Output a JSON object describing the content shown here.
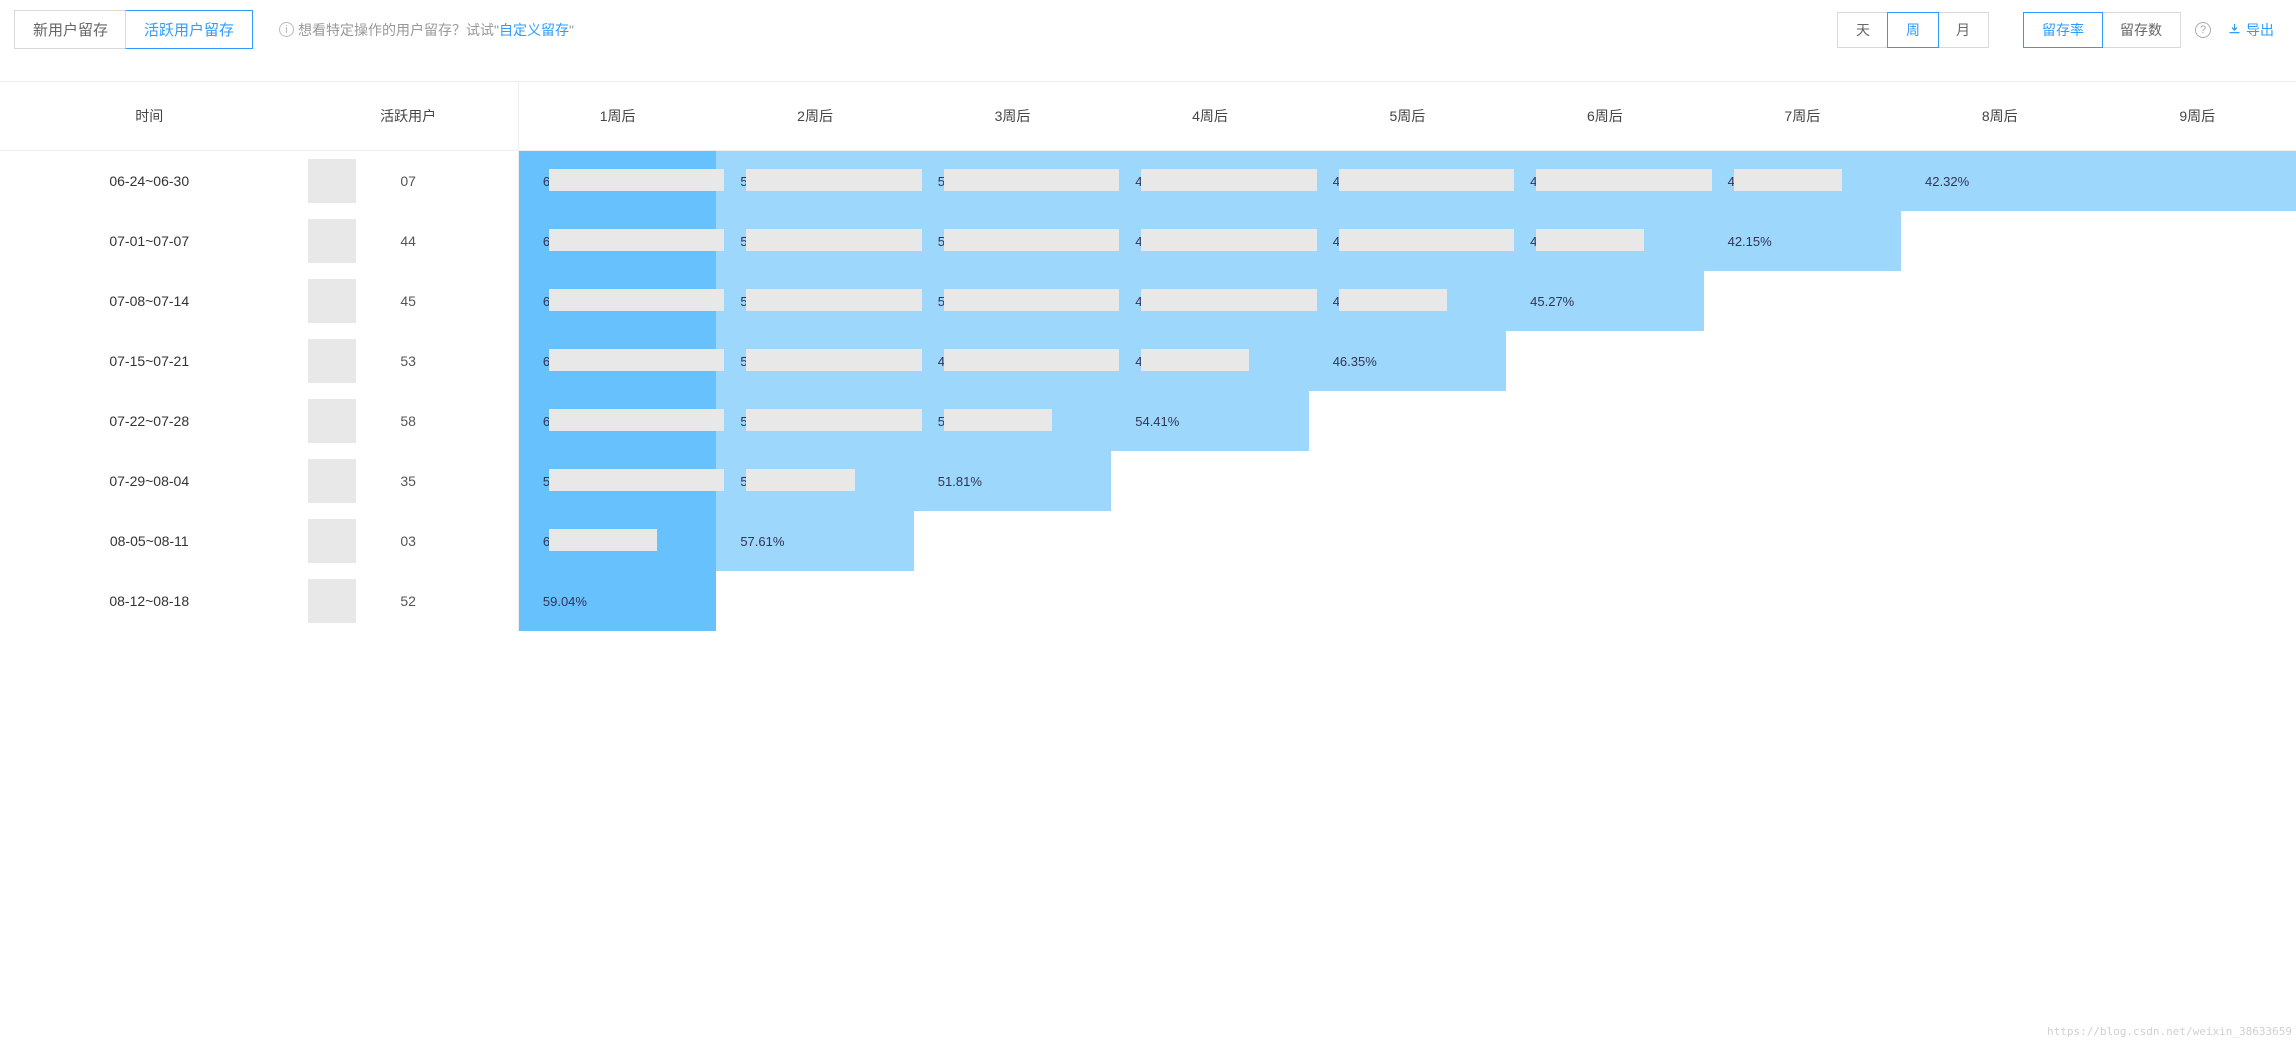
{
  "tabs": {
    "new_user": "新用户留存",
    "active_user": "活跃用户留存",
    "active_tab": "active_user"
  },
  "hint": {
    "prefix": "想看特定操作的用户留存？试试",
    "link_open": "\"",
    "link": "自定义留存",
    "link_close": "\""
  },
  "period": {
    "day": "天",
    "week": "周",
    "month": "月",
    "active": "week"
  },
  "metric": {
    "rate": "留存率",
    "count": "留存数",
    "active": "rate"
  },
  "export_label": "导出",
  "table": {
    "headers": {
      "time": "时间",
      "active_users": "活跃用户",
      "weeks": [
        "1周后",
        "2周后",
        "3周后",
        "4周后",
        "5周后",
        "6周后",
        "7周后",
        "8周后",
        "9周后"
      ]
    },
    "colors": {
      "dark": "#67c1fd",
      "light": "#9ed7fc",
      "row_bg": "#ffffff"
    },
    "rows": [
      {
        "time": "06-24~06-30",
        "users_suffix": "07",
        "cells": [
          {
            "v": "64.56%",
            "shade": "dark",
            "mask": true
          },
          {
            "v": "57.68%",
            "shade": "light",
            "mask": true
          },
          {
            "v": "53.08%",
            "shade": "light",
            "mask": true
          },
          {
            "v": "47.2%",
            "shade": "light",
            "mask": true
          },
          {
            "v": "46.2%",
            "shade": "light",
            "mask": true
          },
          {
            "v": "44.33%",
            "shade": "light",
            "mask": true
          },
          {
            "v": "42.47%",
            "shade": "light",
            "mask": true
          },
          {
            "v": "42.32%",
            "shade": "light",
            "mask": false
          },
          {
            "v": "",
            "shade": "light",
            "mask": false
          }
        ]
      },
      {
        "time": "07-01~07-07",
        "users_suffix": "44",
        "cells": [
          {
            "v": "63.44%",
            "shade": "dark",
            "mask": true
          },
          {
            "v": "54.07%",
            "shade": "light",
            "mask": true
          },
          {
            "v": "50.54%",
            "shade": "light",
            "mask": true
          },
          {
            "v": "47.21%",
            "shade": "light",
            "mask": true
          },
          {
            "v": "44.80%",
            "shade": "light",
            "mask": true
          },
          {
            "v": "42.47%",
            "shade": "light",
            "mask": true
          },
          {
            "v": "42.15%",
            "shade": "light",
            "mask": false
          }
        ]
      },
      {
        "time": "07-08~07-14",
        "users_suffix": "45",
        "cells": [
          {
            "v": "61.07%",
            "shade": "dark",
            "mask": true
          },
          {
            "v": "54.00%",
            "shade": "light",
            "mask": true
          },
          {
            "v": "50.47%",
            "shade": "light",
            "mask": true
          },
          {
            "v": "47.65%",
            "shade": "light",
            "mask": true
          },
          {
            "v": "44.82%",
            "shade": "light",
            "mask": true
          },
          {
            "v": "45.27%",
            "shade": "light",
            "mask": false
          }
        ]
      },
      {
        "time": "07-15~07-21",
        "users_suffix": "53",
        "cells": [
          {
            "v": "60.58%",
            "shade": "dark",
            "mask": true
          },
          {
            "v": "52.70%",
            "shade": "light",
            "mask": true
          },
          {
            "v": "49.74%",
            "shade": "light",
            "mask": true
          },
          {
            "v": "45.87%",
            "shade": "light",
            "mask": true
          },
          {
            "v": "46.35%",
            "shade": "light",
            "mask": false
          }
        ]
      },
      {
        "time": "07-22~07-28",
        "users_suffix": "58",
        "cells": [
          {
            "v": "65.05%",
            "shade": "dark",
            "mask": true
          },
          {
            "v": "59.07%",
            "shade": "light",
            "mask": true
          },
          {
            "v": "55.78%",
            "shade": "light",
            "mask": true
          },
          {
            "v": "54.41%",
            "shade": "light",
            "mask": false
          }
        ]
      },
      {
        "time": "07-29~08-04",
        "users_suffix": "35",
        "cells": [
          {
            "v": "59.72%",
            "shade": "dark",
            "mask": true
          },
          {
            "v": "54.60%",
            "shade": "light",
            "mask": true
          },
          {
            "v": "51.81%",
            "shade": "light",
            "mask": false
          }
        ]
      },
      {
        "time": "08-05~08-11",
        "users_suffix": "03",
        "cells": [
          {
            "v": "63.07%",
            "shade": "dark",
            "mask": true
          },
          {
            "v": "57.61%",
            "shade": "light",
            "mask": false
          }
        ]
      },
      {
        "time": "08-12~08-18",
        "users_suffix": "52",
        "cells": [
          {
            "v": "59.04%",
            "shade": "dark",
            "mask": false
          }
        ]
      }
    ]
  },
  "watermark": "https://blog.csdn.net/weixin_38633659"
}
